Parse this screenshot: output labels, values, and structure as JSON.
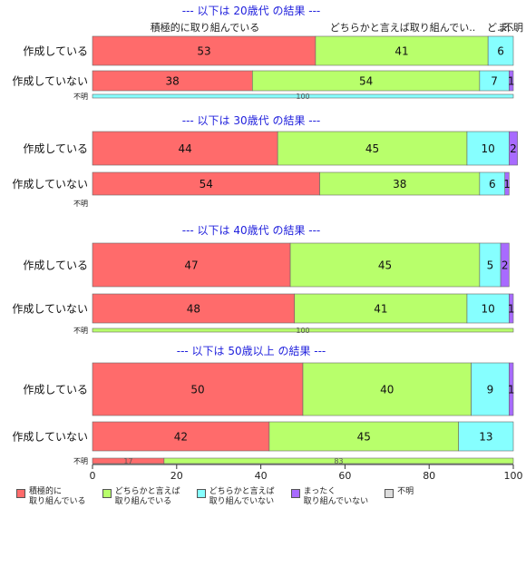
{
  "chart_data": {
    "type": "bar",
    "orientation": "horizontal",
    "stacked": true,
    "xlim": [
      0,
      100
    ],
    "xticks": [
      "0",
      "20",
      "40",
      "60",
      "80",
      "100"
    ],
    "colors": [
      "#FF6B6B",
      "#B8FF6B",
      "#86FFFF",
      "#A86BFF",
      "#DDDDDD"
    ],
    "legend": [
      "積極的に\n取り組んでいる",
      "どちらかと言えば\n取り組んでいる",
      "どちらかと言えば\n取り組んでいない",
      "まったく\n取り組んでいない",
      "不明"
    ],
    "top_header": [
      "積極的に取り組んでいる",
      "どちらかと言えば取り組んでい..",
      "ど…",
      "ま…",
      "不明"
    ],
    "panels": [
      {
        "title": "--- 以下は 20歳代 の結果 ---",
        "rows": [
          {
            "label": "作成している",
            "values": [
              53,
              41,
              6,
              0,
              0
            ],
            "show": [
              "53",
              "41",
              "6",
              "",
              ""
            ]
          },
          {
            "label": "作成していない",
            "values": [
              38,
              54,
              7,
              1,
              0
            ],
            "show": [
              "38",
              "54",
              "7",
              "1",
              ""
            ]
          }
        ],
        "unknown": {
          "label": "不明",
          "values": [
            0,
            0,
            100,
            0,
            0
          ],
          "show": [
            "",
            "",
            "100",
            "",
            ""
          ]
        }
      },
      {
        "title": "--- 以下は 30歳代 の結果 ---",
        "rows": [
          {
            "label": "作成している",
            "values": [
              44,
              45,
              10,
              2,
              0
            ],
            "show": [
              "44",
              "45",
              "10",
              "2",
              ""
            ]
          },
          {
            "label": "作成していない",
            "values": [
              54,
              38,
              6,
              1,
              0
            ],
            "show": [
              "54",
              "38",
              "6",
              "1",
              ""
            ]
          }
        ],
        "unknown": {
          "label": "不明",
          "values": [
            0,
            0,
            0,
            0,
            0
          ],
          "show": [
            "",
            "",
            "",
            "",
            ""
          ]
        }
      },
      {
        "title": "--- 以下は 40歳代 の結果 ---",
        "rows": [
          {
            "label": "作成している",
            "values": [
              47,
              45,
              5,
              2,
              0
            ],
            "show": [
              "47",
              "45",
              "5",
              "2",
              ""
            ]
          },
          {
            "label": "作成していない",
            "values": [
              48,
              41,
              10,
              1,
              0
            ],
            "show": [
              "48",
              "41",
              "10",
              "1",
              ""
            ]
          }
        ],
        "unknown": {
          "label": "不明",
          "values": [
            0,
            100,
            0,
            0,
            0
          ],
          "show": [
            "",
            "100",
            "",
            "",
            ""
          ]
        }
      },
      {
        "title": "--- 以下は 50歳以上 の結果 ---",
        "rows": [
          {
            "label": "作成している",
            "values": [
              50,
              40,
              9,
              1,
              0
            ],
            "show": [
              "50",
              "40",
              "9",
              "1",
              ""
            ]
          },
          {
            "label": "作成していない",
            "values": [
              42,
              45,
              13,
              0,
              0
            ],
            "show": [
              "42",
              "45",
              "13",
              "",
              ""
            ]
          }
        ],
        "unknown": {
          "label": "不明",
          "values": [
            17,
            83,
            0,
            0,
            0
          ],
          "show": [
            "17",
            "83",
            "",
            "",
            ""
          ]
        }
      }
    ]
  }
}
